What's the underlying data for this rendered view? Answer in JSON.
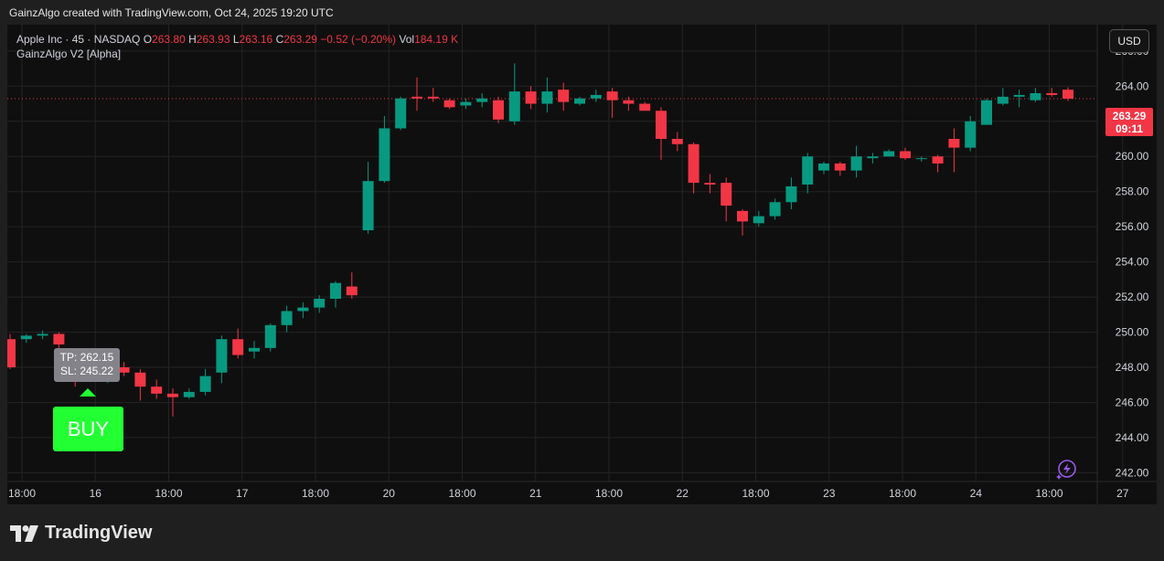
{
  "header": {
    "text": "GainzAlgo created with TradingView.com, Oct 24, 2025 19:20 UTC"
  },
  "legend": {
    "symbol": "Apple Inc · 45 · NASDAQ",
    "o_label": "O",
    "o_value": "263.80",
    "h_label": "H",
    "h_value": "263.93",
    "l_label": "L",
    "l_value": "263.16",
    "c_label": "C",
    "c_value": "263.29",
    "change": "−0.52 (−0.20%)",
    "vol_label": "Vol",
    "vol_value": "184.19 K",
    "indicator": "GainzAlgo V2 [Alpha]"
  },
  "currency": "USD",
  "price_tag": {
    "price": "263.29",
    "countdown": "09:11"
  },
  "signal": {
    "tp": "TP: 262.15",
    "sl": "SL: 245.22",
    "label": "BUY"
  },
  "footer": {
    "brand": "TradingView"
  },
  "colors": {
    "up": "#089981",
    "down": "#f23645",
    "grid": "#242424",
    "text": "#d1d4dc",
    "buy": "#22ff33"
  },
  "chart_data": {
    "type": "candlestick",
    "ylim": [
      241.5,
      267.5
    ],
    "y_ticks": [
      "242.00",
      "244.00",
      "246.00",
      "248.00",
      "250.00",
      "252.00",
      "254.00",
      "256.00",
      "258.00",
      "260.00",
      "262.00",
      "264.00",
      "266.00"
    ],
    "x_ticks": [
      "18:00",
      "16",
      "18:00",
      "17",
      "18:00",
      "20",
      "18:00",
      "21",
      "18:00",
      "22",
      "18:00",
      "23",
      "18:00",
      "24",
      "18:00",
      "27"
    ],
    "last_price": 263.29,
    "candles": [
      [
        249.6,
        248.0,
        249.9,
        247.9
      ],
      [
        249.6,
        249.8,
        249.9,
        249.4
      ],
      [
        249.8,
        249.9,
        250.1,
        249.6
      ],
      [
        249.9,
        249.3,
        250.0,
        249.0
      ],
      [
        248.4,
        247.3,
        248.7,
        246.9
      ],
      [
        247.4,
        247.5,
        247.7,
        247.2
      ],
      [
        247.3,
        247.5,
        247.6,
        247.1
      ],
      [
        248.0,
        247.7,
        248.3,
        247.5
      ],
      [
        247.7,
        246.9,
        247.9,
        246.1
      ],
      [
        246.9,
        246.5,
        247.3,
        246.2
      ],
      [
        246.5,
        246.3,
        246.8,
        245.2
      ],
      [
        246.3,
        246.6,
        246.8,
        246.2
      ],
      [
        246.6,
        247.5,
        247.9,
        246.4
      ],
      [
        247.7,
        249.6,
        249.8,
        247.1
      ],
      [
        249.6,
        248.7,
        250.2,
        248.5
      ],
      [
        248.9,
        249.1,
        249.5,
        248.5
      ],
      [
        249.1,
        250.4,
        250.5,
        248.9
      ],
      [
        250.4,
        251.2,
        251.5,
        250.0
      ],
      [
        251.2,
        251.4,
        251.7,
        250.8
      ],
      [
        251.4,
        251.9,
        252.1,
        251.1
      ],
      [
        251.9,
        252.8,
        252.9,
        251.4
      ],
      [
        252.6,
        252.1,
        253.4,
        251.9
      ],
      [
        255.8,
        258.6,
        259.7,
        255.6
      ],
      [
        258.6,
        261.6,
        262.3,
        258.5
      ],
      [
        261.6,
        263.3,
        263.4,
        261.5
      ],
      [
        263.4,
        263.3,
        264.5,
        262.6
      ],
      [
        263.4,
        263.3,
        263.9,
        263.1
      ],
      [
        263.2,
        262.8,
        263.3,
        262.7
      ],
      [
        262.9,
        263.1,
        263.3,
        262.7
      ],
      [
        263.1,
        263.3,
        263.6,
        262.8
      ],
      [
        263.2,
        262.1,
        263.4,
        261.9
      ],
      [
        262.0,
        263.7,
        265.3,
        261.8
      ],
      [
        263.7,
        263.0,
        264.0,
        262.7
      ],
      [
        263.0,
        263.7,
        264.5,
        262.5
      ],
      [
        263.8,
        263.1,
        264.2,
        262.6
      ],
      [
        263.0,
        263.3,
        263.4,
        262.9
      ],
      [
        263.3,
        263.5,
        263.8,
        263.1
      ],
      [
        263.7,
        263.2,
        263.9,
        262.2
      ],
      [
        263.2,
        263.0,
        263.4,
        262.6
      ],
      [
        263.0,
        262.6,
        263.1,
        262.6
      ],
      [
        262.6,
        261.0,
        262.8,
        259.8
      ],
      [
        261.0,
        260.7,
        261.4,
        260.3
      ],
      [
        260.7,
        258.5,
        260.8,
        257.9
      ],
      [
        258.5,
        258.4,
        259.0,
        257.9
      ],
      [
        258.5,
        257.2,
        258.8,
        256.3
      ],
      [
        256.9,
        256.3,
        257.0,
        255.5
      ],
      [
        256.2,
        256.6,
        256.9,
        256.0
      ],
      [
        256.6,
        257.4,
        257.6,
        256.4
      ],
      [
        257.4,
        258.3,
        258.8,
        257.0
      ],
      [
        258.4,
        260.0,
        260.2,
        257.9
      ],
      [
        259.2,
        259.6,
        259.7,
        259.0
      ],
      [
        259.6,
        259.2,
        259.7,
        258.9
      ],
      [
        259.2,
        260.0,
        260.6,
        258.8
      ],
      [
        259.9,
        260.0,
        260.2,
        259.6
      ],
      [
        260.0,
        260.3,
        260.4,
        260.0
      ],
      [
        260.3,
        259.9,
        260.5,
        259.8
      ],
      [
        259.9,
        259.9,
        260.0,
        259.7
      ],
      [
        260.0,
        259.6,
        260.1,
        259.1
      ],
      [
        261.0,
        260.5,
        261.6,
        259.1
      ],
      [
        260.5,
        262.0,
        262.3,
        260.3
      ],
      [
        261.8,
        263.2,
        263.3,
        261.8
      ],
      [
        263.0,
        263.4,
        263.9,
        262.9
      ],
      [
        263.4,
        263.5,
        263.8,
        262.8
      ],
      [
        263.2,
        263.6,
        263.9,
        263.1
      ],
      [
        263.6,
        263.5,
        263.9,
        263.4
      ],
      [
        263.8,
        263.29,
        263.93,
        263.16
      ]
    ]
  }
}
